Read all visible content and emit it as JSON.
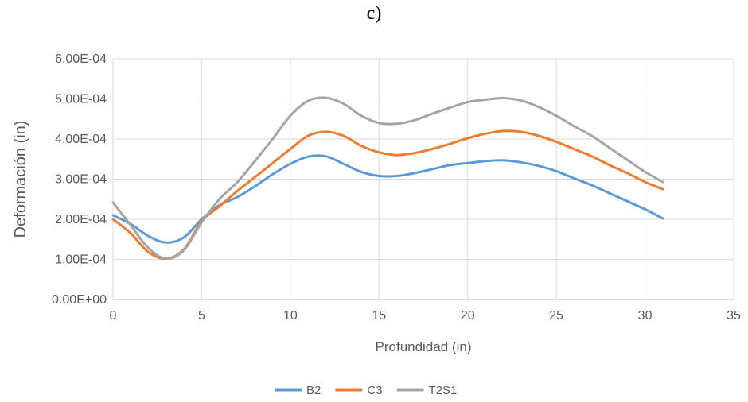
{
  "figure_label": "c)",
  "chart_data": {
    "type": "line",
    "title": "",
    "xlabel": "Profundidad (in)",
    "ylabel": "Deformación (in)",
    "xlim": [
      0,
      35
    ],
    "ylim": [
      0,
      0.0006
    ],
    "x_ticks": [
      0,
      5,
      10,
      15,
      20,
      25,
      30,
      35
    ],
    "x_tick_labels": [
      "0",
      "5",
      "10",
      "15",
      "20",
      "25",
      "30",
      "35"
    ],
    "y_ticks": [
      0,
      0.0001,
      0.0002,
      0.0003,
      0.0004,
      0.0005,
      0.0006
    ],
    "y_tick_labels": [
      "0.00E+00",
      "1.00E-04",
      "2.00E-04",
      "3.00E-04",
      "4.00E-04",
      "5.00E-04",
      "6.00E-04"
    ],
    "grid": true,
    "legend_position": "bottom",
    "x": [
      0,
      1,
      2,
      3,
      4,
      5,
      6,
      7,
      8,
      9,
      10,
      11,
      12,
      13,
      14,
      15,
      16,
      17,
      18,
      19,
      20,
      21,
      22,
      23,
      24,
      25,
      26,
      27,
      28,
      29,
      30,
      31
    ],
    "series": [
      {
        "name": "B2",
        "color": "#5B9BD5",
        "values": [
          0.00021,
          0.000188,
          0.000158,
          0.000142,
          0.000155,
          0.0002,
          0.000235,
          0.000255,
          0.000282,
          0.000312,
          0.000338,
          0.000356,
          0.000357,
          0.000338,
          0.000318,
          0.000308,
          0.000308,
          0.000315,
          0.000325,
          0.000335,
          0.00034,
          0.000345,
          0.000347,
          0.000342,
          0.000333,
          0.00032,
          0.000302,
          0.000285,
          0.000265,
          0.000245,
          0.000225,
          0.000202
        ]
      },
      {
        "name": "C3",
        "color": "#ED7D31",
        "values": [
          0.0002,
          0.000165,
          0.000118,
          0.000102,
          0.000125,
          0.000195,
          0.000232,
          0.00027,
          0.000305,
          0.00034,
          0.000375,
          0.000408,
          0.000418,
          0.000408,
          0.000383,
          0.000367,
          0.00036,
          0.000365,
          0.000375,
          0.000388,
          0.000402,
          0.000413,
          0.00042,
          0.000418,
          0.000408,
          0.000393,
          0.000375,
          0.000357,
          0.000335,
          0.000315,
          0.000293,
          0.000275
        ]
      },
      {
        "name": "T2S1",
        "color": "#A5A5A5",
        "values": [
          0.000242,
          0.000185,
          0.000128,
          0.000102,
          0.000123,
          0.000192,
          0.00025,
          0.000292,
          0.000345,
          0.0004,
          0.000458,
          0.000495,
          0.000503,
          0.000488,
          0.000458,
          0.00044,
          0.000438,
          0.000447,
          0.000463,
          0.000478,
          0.000492,
          0.000498,
          0.000502,
          0.000496,
          0.00048,
          0.000458,
          0.000432,
          0.000408,
          0.000378,
          0.000348,
          0.000318,
          0.000293
        ]
      }
    ]
  }
}
